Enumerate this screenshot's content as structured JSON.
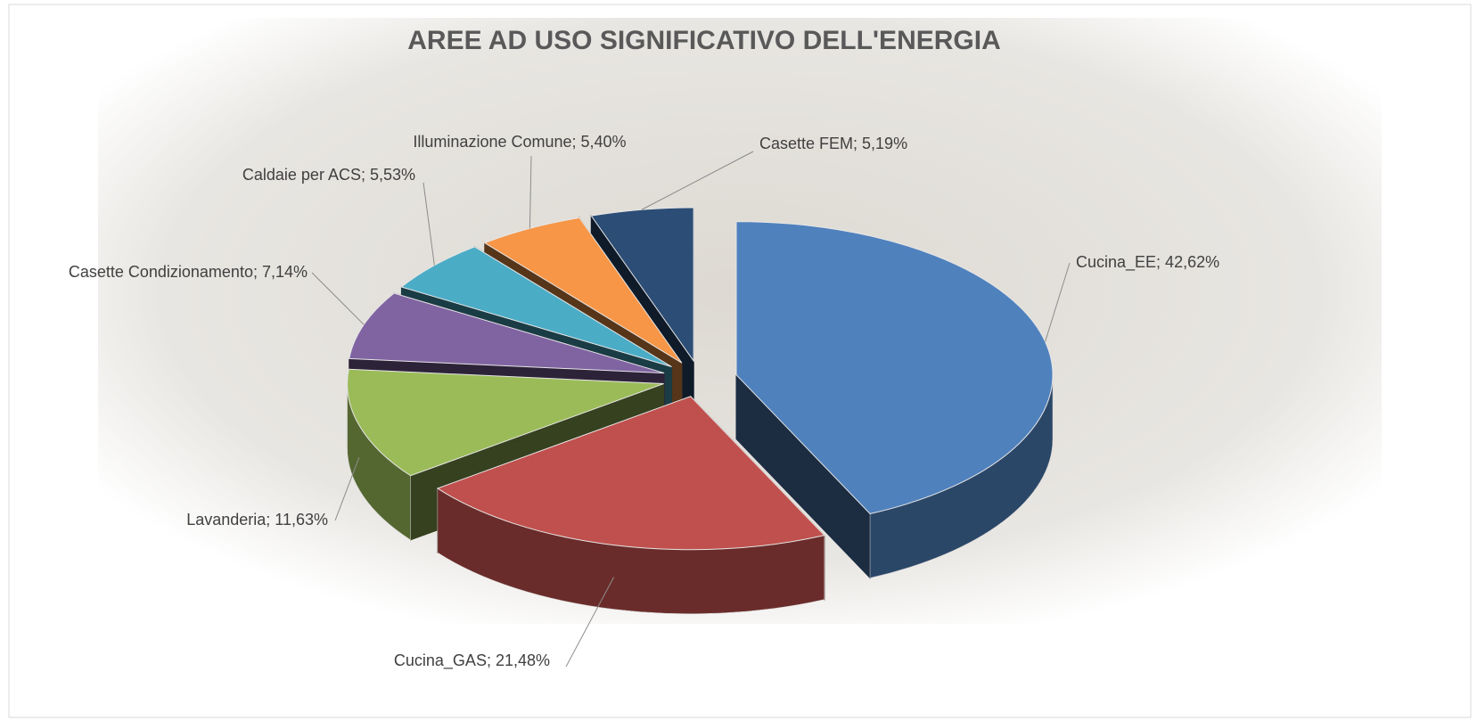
{
  "chart_data": {
    "type": "pie3d",
    "title": "AREE AD USO SIGNIFICATIVO DELL'ENERGIA",
    "values": [
      42.62,
      21.48,
      11.63,
      7.14,
      5.53,
      5.4,
      5.19
    ],
    "value_labels": [
      "Cucina_EE; 42,62%",
      "Cucina_GAS; 21,48%",
      "Lavanderia; 11,63%",
      "Casette Condizionamento; 7,14%",
      "Caldaie per ACS; 5,53%",
      "Illuminazione Comune; 5,40%",
      "Casette FEM; 5,19%"
    ],
    "colors": [
      "#4f81bd",
      "#c0504d",
      "#9bbb59",
      "#8064a2",
      "#4bacc6",
      "#f79646",
      "#2c4d75"
    ]
  }
}
